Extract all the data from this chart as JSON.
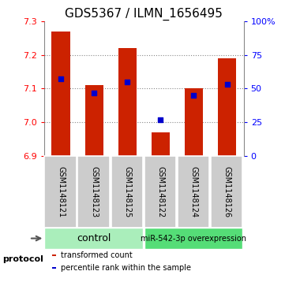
{
  "title": "GDS5367 / ILMN_1656495",
  "samples": [
    "GSM1148121",
    "GSM1148123",
    "GSM1148125",
    "GSM1148122",
    "GSM1148124",
    "GSM1148126"
  ],
  "bar_values": [
    7.27,
    7.11,
    7.22,
    6.97,
    7.1,
    7.19
  ],
  "bar_bottom": 6.9,
  "percentile_values": [
    57,
    47,
    55,
    27,
    45,
    53
  ],
  "ylim_left": [
    6.9,
    7.3
  ],
  "ylim_right": [
    0,
    100
  ],
  "yticks_left": [
    6.9,
    7.0,
    7.1,
    7.2,
    7.3
  ],
  "yticks_right": [
    0,
    25,
    50,
    75,
    100
  ],
  "ytick_labels_right": [
    "0",
    "25",
    "50",
    "75",
    "100%"
  ],
  "bar_color": "#cc2200",
  "dot_color": "#0000cc",
  "group_colors": [
    "#aaeebb",
    "#55dd77"
  ],
  "group_labels": [
    "control",
    "miR-542-3p overexpression"
  ],
  "group_ranges": [
    [
      0,
      2
    ],
    [
      3,
      5
    ]
  ],
  "protocol_label": "protocol",
  "legend_items": [
    {
      "label": "transformed count",
      "color": "#cc2200"
    },
    {
      "label": "percentile rank within the sample",
      "color": "#0000cc"
    }
  ],
  "title_fontsize": 11,
  "tick_fontsize": 8,
  "label_fontsize": 7,
  "bar_width": 0.55
}
